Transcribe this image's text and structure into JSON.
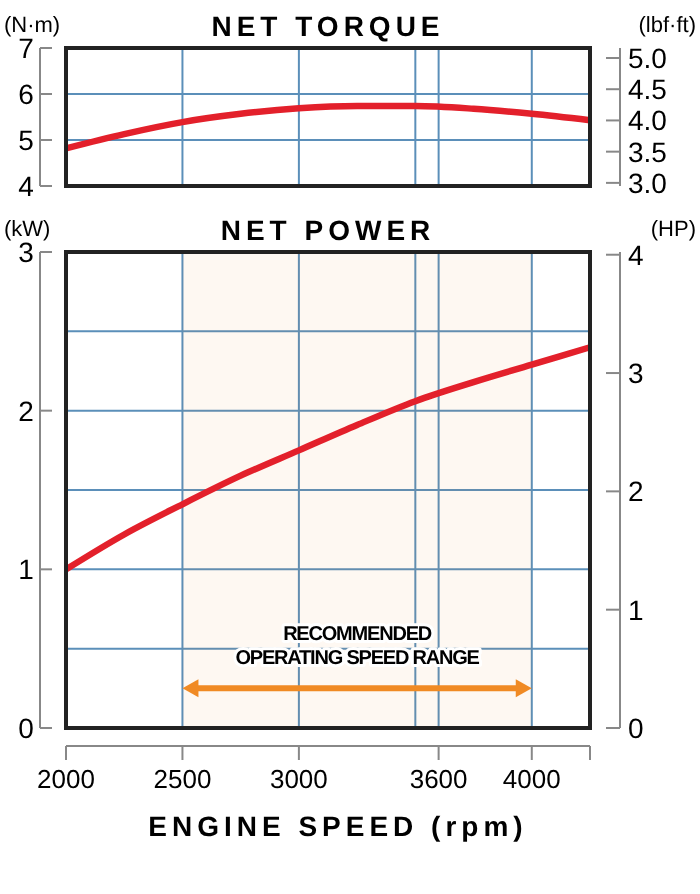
{
  "chart_data": [
    {
      "type": "line",
      "title": "NET TORQUE",
      "ylabel": "(N·m)",
      "y2label": "(lbf·ft)",
      "x": [
        2000,
        2250,
        2500,
        2750,
        3000,
        3250,
        3500,
        3750,
        4000,
        4250
      ],
      "xlim": [
        2000,
        4250
      ],
      "xticks": [
        2000,
        2500,
        3000,
        {
          "value": 3500,
          "label": null
        },
        3600,
        4000
      ],
      "ylim": [
        4,
        7
      ],
      "yticks": [
        4,
        5,
        6,
        7
      ],
      "y2lim": [
        2.95,
        5.16
      ],
      "y2ticks": [
        {
          "value": 3,
          "label": "3.0"
        },
        3.5,
        {
          "value": 4,
          "label": "4.0"
        },
        4.5,
        {
          "value": 5,
          "label": "5.0"
        }
      ],
      "tick_labels": "y",
      "grid": true,
      "line_style": "solid",
      "series": [
        {
          "color": "#e3202b",
          "values": [
            4.82,
            5.13,
            5.39,
            5.57,
            5.69,
            5.74,
            5.74,
            5.68,
            5.57,
            5.43
          ]
        }
      ]
    },
    {
      "type": "line",
      "title": "NET POWER",
      "ylabel": "(kW)",
      "y2label": "(HP)",
      "xlabel": "ENGINE SPEED (rpm)",
      "x": [
        2000,
        2250,
        2500,
        2750,
        3000,
        3250,
        3500,
        3750,
        4000,
        4250
      ],
      "xlim": [
        2000,
        4250
      ],
      "xticks": [
        2000,
        2500,
        3000,
        {
          "value": 3500,
          "label": null
        },
        3600,
        4000
      ],
      "ylim": [
        0,
        3
      ],
      "yticks": [
        0,
        {
          "value": 0.5,
          "label": null
        },
        1,
        {
          "value": 1.5,
          "label": null
        },
        2,
        {
          "value": 2.5,
          "label": null
        },
        3
      ],
      "y2lim": [
        0,
        4.023
      ],
      "y2ticks": [
        0,
        1,
        2,
        3,
        4
      ],
      "grid": true,
      "line_style": "solid",
      "series": [
        {
          "color": "#e3202b",
          "values": [
            1.0,
            1.22,
            1.41,
            1.59,
            1.75,
            1.91,
            2.06,
            2.18,
            2.29,
            2.4
          ]
        }
      ],
      "bands": [
        {
          "axis": "x",
          "from": 2500,
          "to": 4000,
          "label": "RECOMMENDED\nOPERATING SPEED RANGE",
          "color": "#f08a24"
        }
      ]
    }
  ]
}
